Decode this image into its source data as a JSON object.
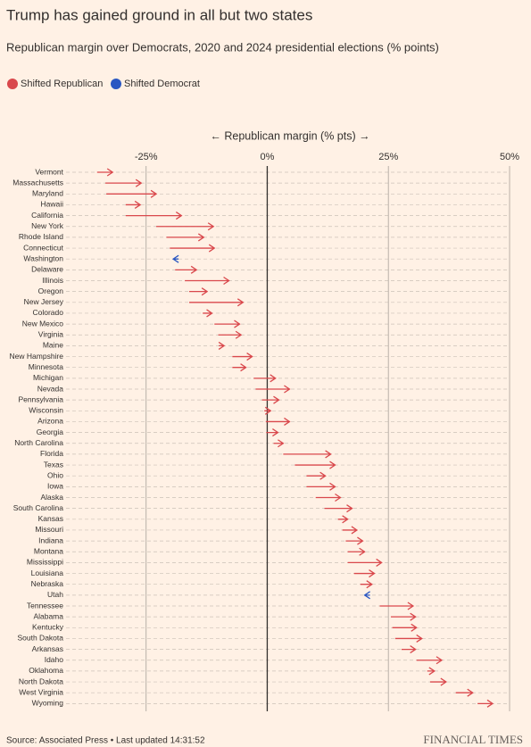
{
  "chart_data": {
    "type": "arrow",
    "title": "Trump has gained ground in all but two states",
    "subtitle": "Republican margin over Democrats, 2020 and 2024 presidential elections (% points)",
    "legend": [
      {
        "name": "Shifted Republican",
        "color": "#d9484c"
      },
      {
        "name": "Shifted Democrat",
        "color": "#2a57c2"
      }
    ],
    "x_label": "← Republican margin (% pts) →",
    "categories": [
      "Vermont",
      "Massachusetts",
      "Maryland",
      "Hawaii",
      "California",
      "New York",
      "Rhode Island",
      "Connecticut",
      "Washington",
      "Delaware",
      "Illinois",
      "Oregon",
      "New Jersey",
      "Colorado",
      "New Mexico",
      "Virginia",
      "Maine",
      "New Hampshire",
      "Minnesota",
      "Michigan",
      "Nevada",
      "Pennsylvania",
      "Wisconsin",
      "Arizona",
      "Georgia",
      "North Carolina",
      "Florida",
      "Texas",
      "Ohio",
      "Iowa",
      "Alaska",
      "South Carolina",
      "Kansas",
      "Missouri",
      "Indiana",
      "Montana",
      "Mississippi",
      "Louisiana",
      "Nebraska",
      "Utah",
      "Tennessee",
      "Alabama",
      "Kentucky",
      "South Dakota",
      "Arkansas",
      "Idaho",
      "Oklahoma",
      "North Dakota",
      "West Virginia",
      "Wyoming"
    ],
    "values_2020": [
      -35.1,
      -33.4,
      -33.2,
      -29.2,
      -29.2,
      -22.9,
      -20.8,
      -20.1,
      -18.3,
      -19.0,
      -17.0,
      -16.1,
      -16.1,
      -13.3,
      -10.9,
      -10.1,
      -10.0,
      -7.2,
      -7.2,
      -2.8,
      -2.4,
      -1.1,
      -0.6,
      -0.3,
      -0.2,
      1.3,
      3.3,
      5.7,
      8.1,
      8.1,
      10.0,
      11.8,
      14.6,
      15.5,
      16.2,
      16.6,
      16.6,
      17.9,
      19.2,
      21.2,
      23.2,
      25.5,
      25.8,
      26.4,
      27.7,
      30.8,
      33.0,
      33.6,
      38.9,
      43.4
    ],
    "values_2024": [
      -31.9,
      -26.0,
      -22.9,
      -26.2,
      -17.7,
      -11.1,
      -13.1,
      -10.9,
      -19.4,
      -14.6,
      -7.9,
      -12.4,
      -5.0,
      -11.4,
      -5.7,
      -5.4,
      -8.9,
      -3.1,
      -4.4,
      1.7,
      4.6,
      2.4,
      0.7,
      4.6,
      2.2,
      3.3,
      13.1,
      14.0,
      12.0,
      14.0,
      15.1,
      17.5,
      16.6,
      18.5,
      19.7,
      20.1,
      23.6,
      22.1,
      21.6,
      20.1,
      30.1,
      30.6,
      30.8,
      31.9,
      30.6,
      36.0,
      34.5,
      36.9,
      42.4,
      46.5
    ],
    "xlim": [
      -37,
      50
    ],
    "xticks": [
      {
        "value": -25,
        "label": "-25%"
      },
      {
        "value": 0,
        "label": "0%"
      },
      {
        "value": 25,
        "label": "25%"
      },
      {
        "value": 50,
        "label": "50%"
      }
    ],
    "source": "Source: Associated Press • Last updated 14:31:52",
    "brand": "FINANCIAL TIMES"
  }
}
